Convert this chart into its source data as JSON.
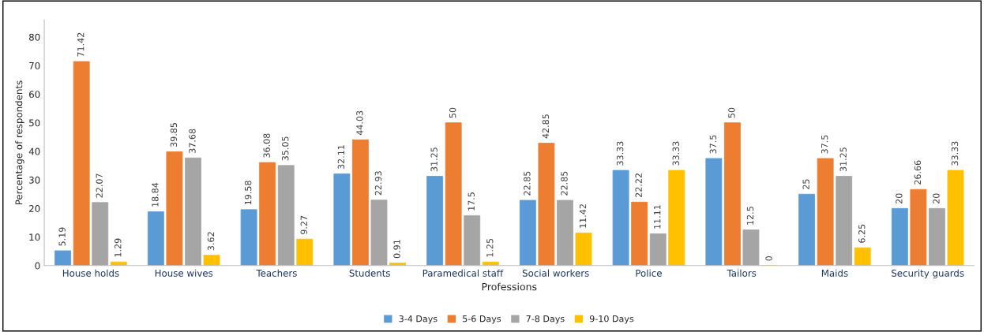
{
  "chart_data": {
    "type": "bar",
    "categories": [
      "House holds",
      "House wives",
      "Teachers",
      "Students",
      "Paramedical staff",
      "Social workers",
      "Police",
      "Tailors",
      "Maids",
      "Security guards"
    ],
    "series": [
      {
        "name": "3-4 Days",
        "color": "#5b9bd5",
        "values": [
          5.19,
          18.84,
          19.58,
          32.11,
          31.25,
          22.85,
          33.33,
          37.5,
          25,
          20
        ]
      },
      {
        "name": "5-6 Days",
        "color": "#ed7d31",
        "values": [
          71.42,
          39.85,
          36.08,
          44.03,
          50,
          42.85,
          22.22,
          50,
          37.5,
          26.66
        ]
      },
      {
        "name": "7-8 Days",
        "color": "#a5a5a5",
        "values": [
          22.07,
          37.68,
          35.05,
          22.93,
          17.5,
          22.85,
          11.11,
          12.5,
          31.25,
          20
        ]
      },
      {
        "name": "9-10 Days",
        "color": "#ffc000",
        "values": [
          1.29,
          3.62,
          9.27,
          0.91,
          1.25,
          11.42,
          33.33,
          0,
          6.25,
          33.33
        ]
      }
    ],
    "xlabel": "Professions",
    "ylabel": "Percentage of respondents",
    "ylim": [
      0,
      86
    ],
    "yticks": [
      0,
      10,
      20,
      30,
      40,
      50,
      60,
      70,
      80
    ],
    "data_labels": true,
    "legend": "bottom",
    "grid": false
  }
}
